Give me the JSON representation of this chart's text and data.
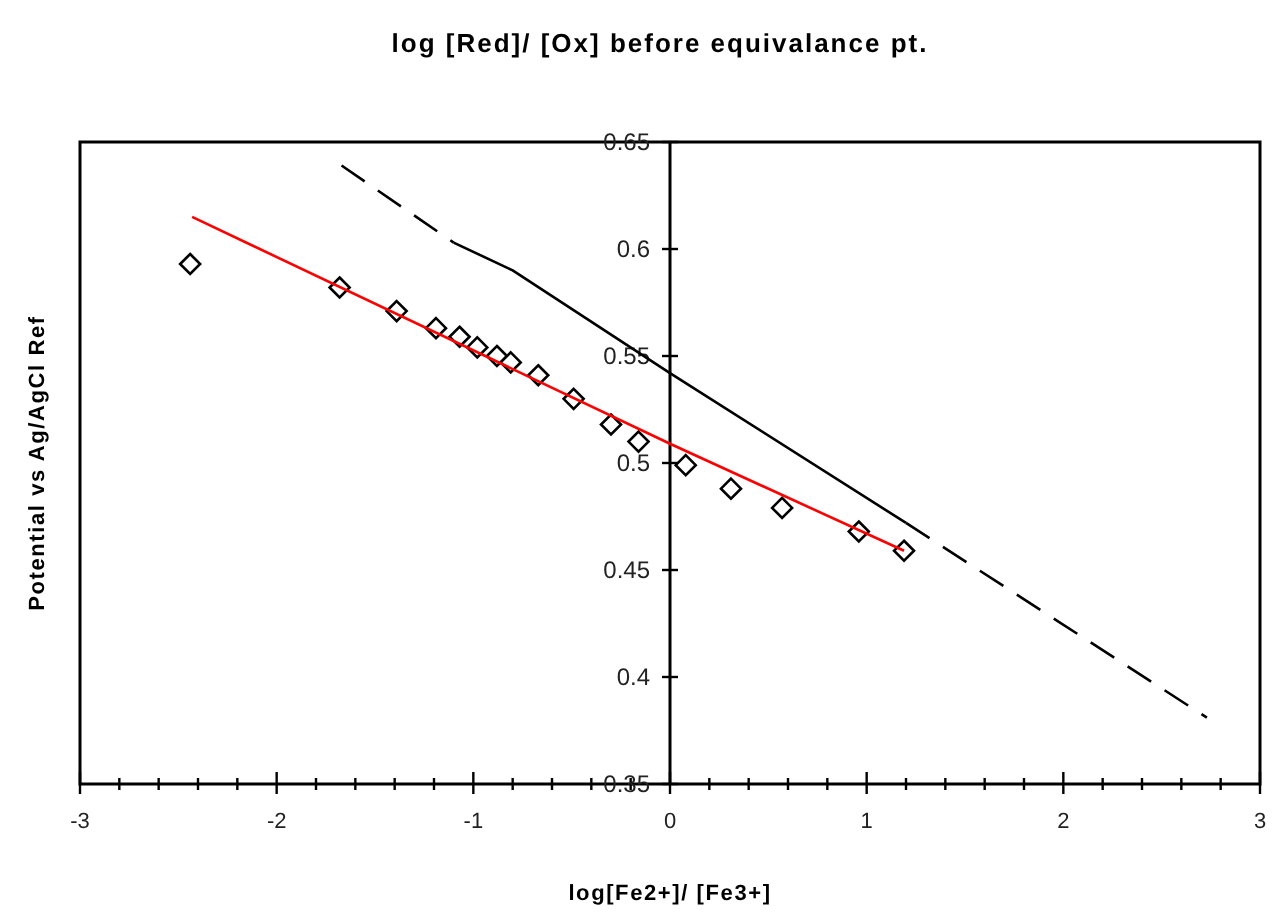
{
  "chart_data": {
    "type": "scatter",
    "title": "log [Red]/ [Ox] before equivalance pt.",
    "xlabel": "log[Fe2+]/ [Fe3+]",
    "ylabel": "Potential vs Ag/AgCl Ref",
    "xlim": [
      -3,
      3
    ],
    "ylim": [
      0.35,
      0.65
    ],
    "xticks": [
      -3,
      {
        "value": -2.8,
        "label": null
      },
      {
        "value": -2.6,
        "label": null
      },
      {
        "value": -2.4,
        "label": null
      },
      {
        "value": -2.2,
        "label": null
      },
      -2,
      {
        "value": -1.8,
        "label": null
      },
      {
        "value": -1.6,
        "label": null
      },
      {
        "value": -1.4,
        "label": null
      },
      {
        "value": -1.2,
        "label": null
      },
      -1,
      {
        "value": -0.8,
        "label": null
      },
      {
        "value": -0.6,
        "label": null
      },
      {
        "value": -0.4,
        "label": null
      },
      {
        "value": -0.2,
        "label": null
      },
      0,
      {
        "value": 0.2,
        "label": null
      },
      {
        "value": 0.4,
        "label": null
      },
      {
        "value": 0.6,
        "label": null
      },
      {
        "value": 0.8,
        "label": null
      },
      1,
      {
        "value": 1.2,
        "label": null
      },
      {
        "value": 1.4,
        "label": null
      },
      {
        "value": 1.6,
        "label": null
      },
      {
        "value": 1.8,
        "label": null
      },
      2,
      {
        "value": 2.2,
        "label": null
      },
      {
        "value": 2.4,
        "label": null
      },
      {
        "value": 2.6,
        "label": null
      },
      {
        "value": 2.8,
        "label": null
      },
      3
    ],
    "yticks": [
      0.35,
      0.4,
      0.45,
      0.5,
      0.55,
      0.6,
      0.65
    ],
    "grid": false,
    "series": [
      {
        "marker": "diamond",
        "color": "#000000",
        "x": [
          -2.44,
          -1.68,
          -1.39,
          -1.19,
          -1.07,
          -0.98,
          -0.88,
          -0.81,
          -0.67,
          -0.49,
          -0.3,
          -0.16,
          0.08,
          0.31,
          0.57,
          0.96,
          1.19
        ],
        "values": [
          0.593,
          0.582,
          0.571,
          0.563,
          0.559,
          0.554,
          0.55,
          0.547,
          0.541,
          0.53,
          0.518,
          0.51,
          0.499,
          0.488,
          0.479,
          0.468,
          0.459
        ]
      },
      {
        "type": "line",
        "marker": "none",
        "line_style": "solid",
        "color": "#ff0000",
        "x": [
          -2.43,
          0,
          1.19
        ],
        "values": [
          0.615,
          0.509,
          0.459
        ]
      },
      {
        "type": "line",
        "marker": "none",
        "line_style": "dashed",
        "color": "#000000",
        "x": [
          -1.67,
          -1.1
        ],
        "values": [
          0.639,
          0.603
        ]
      },
      {
        "type": "line",
        "marker": "none",
        "line_style": "solid",
        "color": "#000000",
        "x": [
          -1.1,
          -0.8,
          0,
          1.2
        ],
        "values": [
          0.603,
          0.59,
          0.542,
          0.472
        ]
      },
      {
        "type": "line",
        "marker": "none",
        "line_style": "dashed",
        "color": "#000000",
        "x": [
          1.2,
          2.73
        ],
        "values": [
          0.472,
          0.381
        ]
      }
    ]
  }
}
